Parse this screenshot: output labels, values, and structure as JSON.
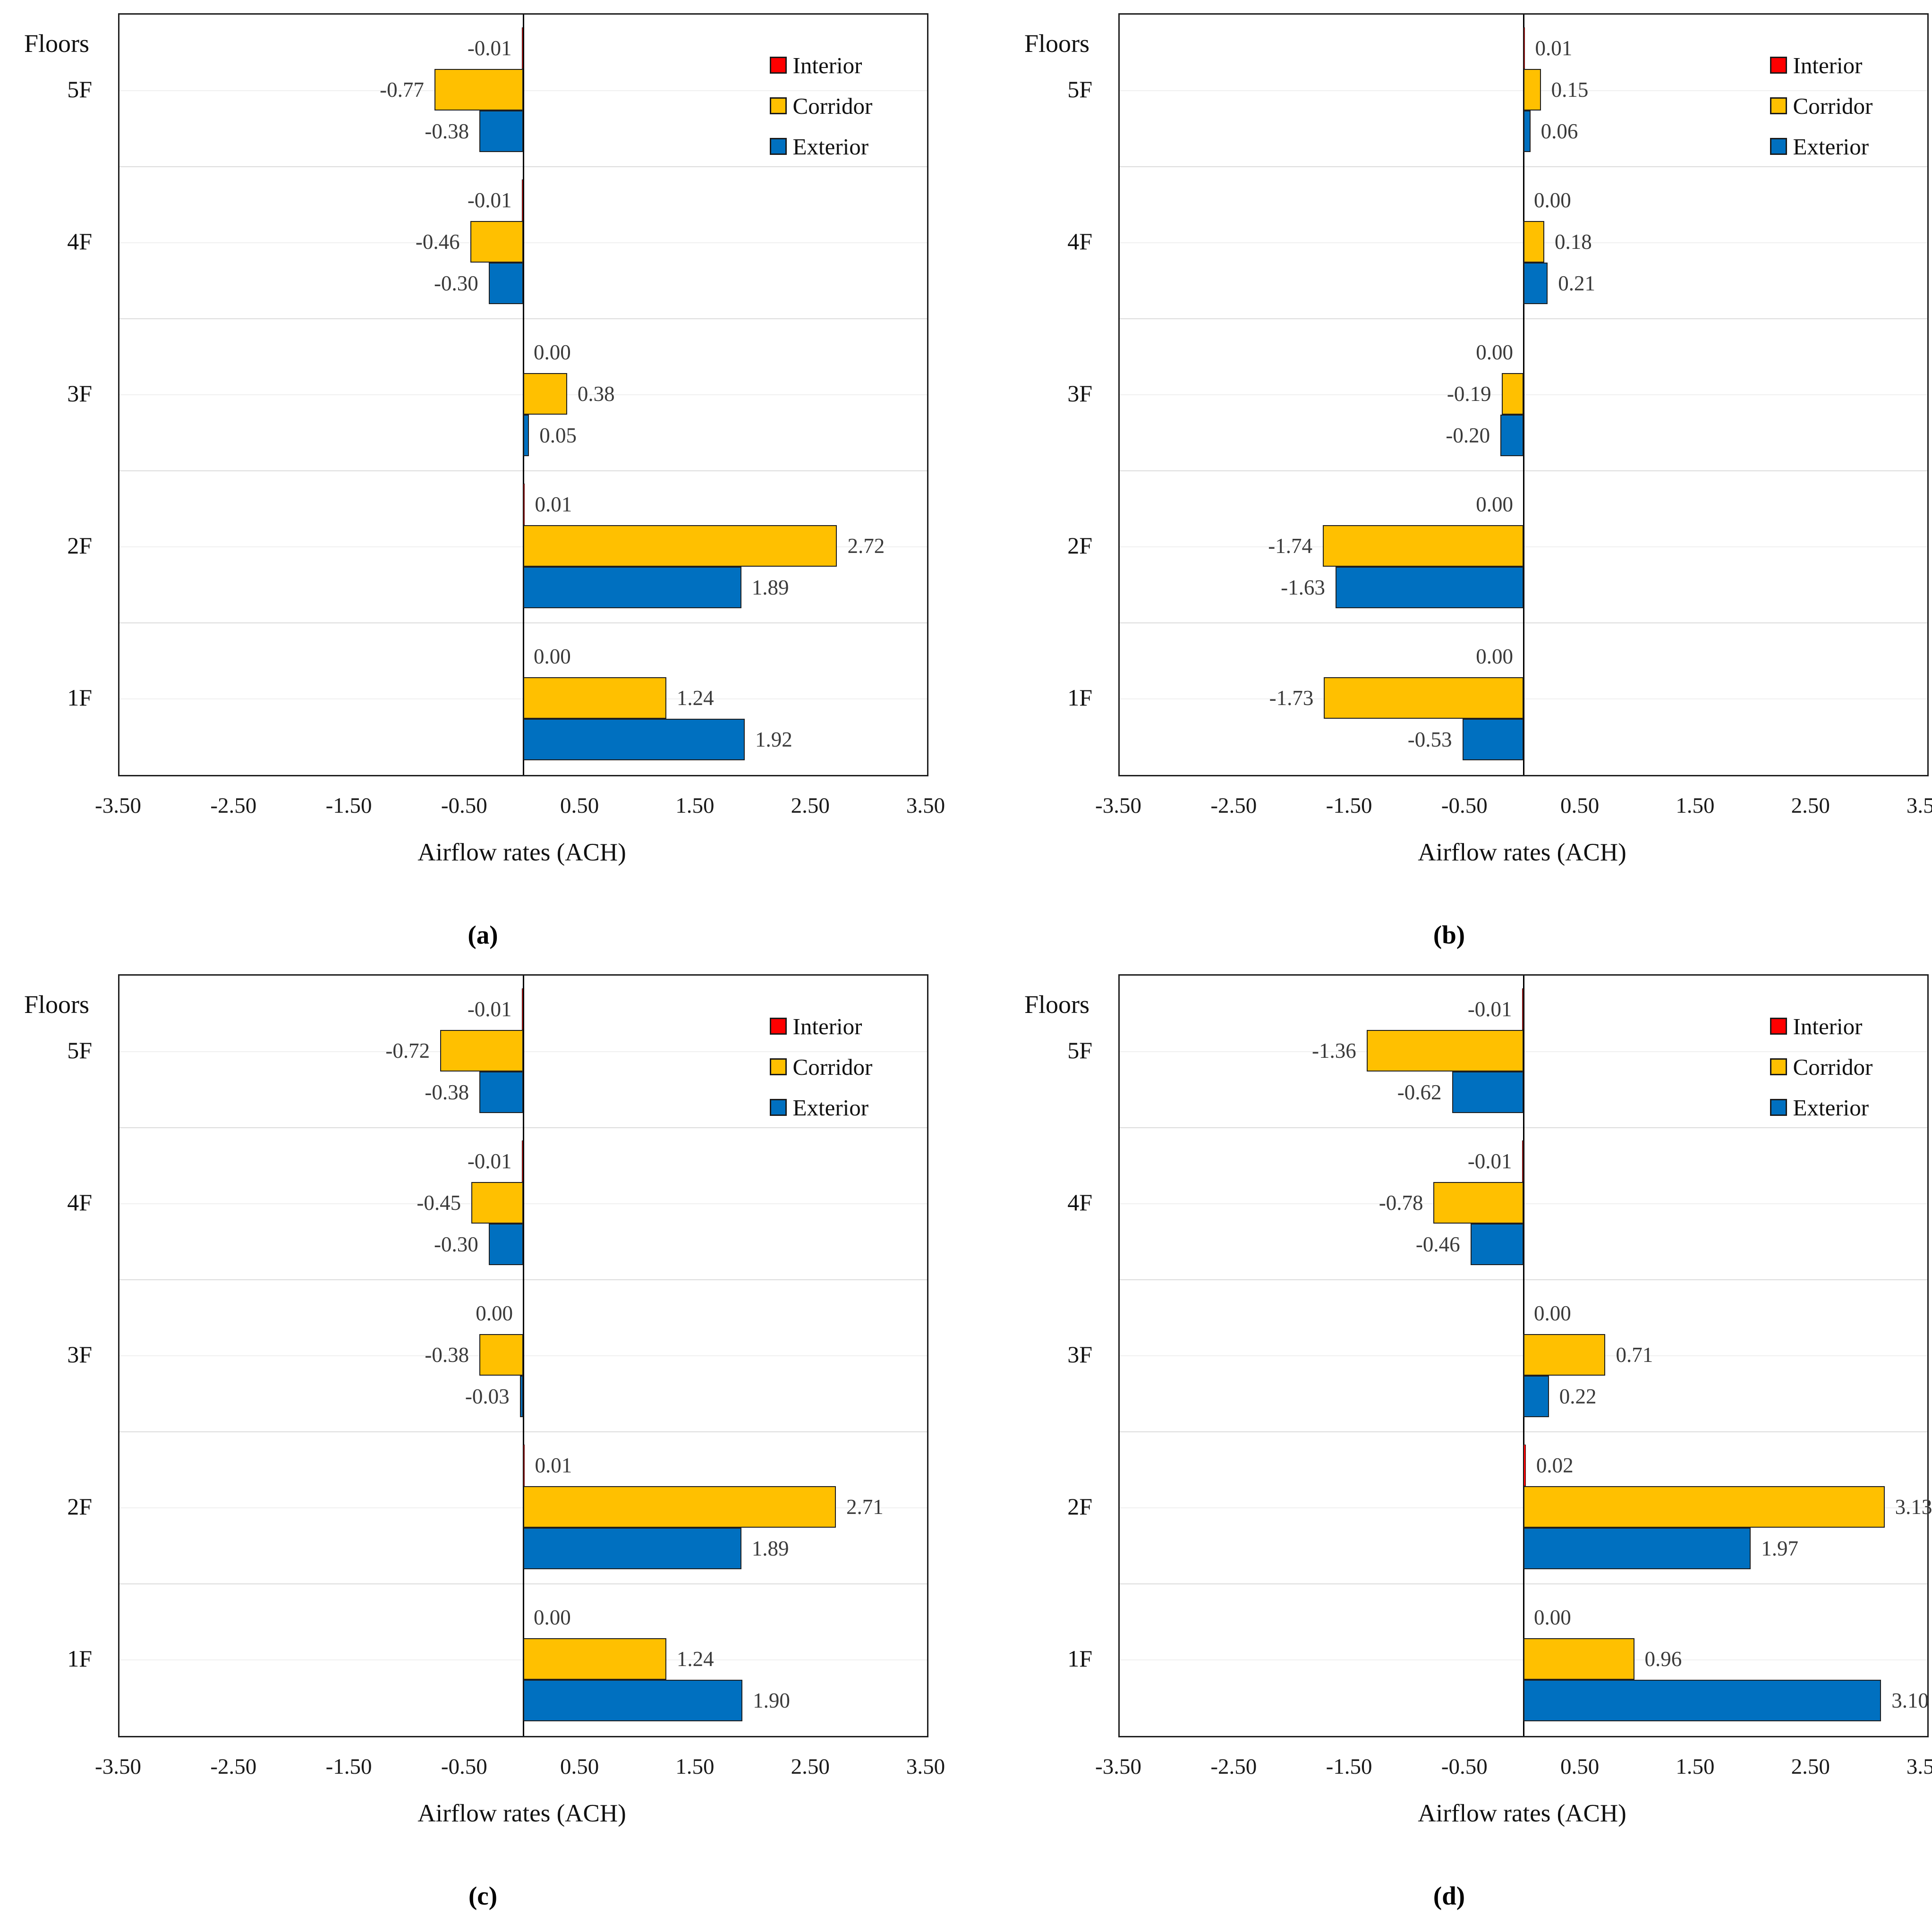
{
  "figure": {
    "y_axis_title": "Floors",
    "x_axis_title": "Airflow rates (ACH)",
    "x_ticks": [
      "-3.50",
      "-2.50",
      "-1.50",
      "-0.50",
      "0.50",
      "1.50",
      "2.50",
      "3.50"
    ],
    "x_range": [
      -3.5,
      3.5
    ],
    "legend": [
      {
        "label": "Interior",
        "color": "#fe0000"
      },
      {
        "label": "Corridor",
        "color": "#ffc000"
      },
      {
        "label": "Exterior",
        "color": "#0070c0"
      }
    ]
  },
  "chart_data": [
    {
      "type": "bar",
      "orientation": "horizontal",
      "caption": "(a)",
      "xlabel": "Airflow rates (ACH)",
      "ylabel": "Floors",
      "xlim": [
        -3.5,
        3.5
      ],
      "grid": "horizontal-light",
      "legend_position": "top-right-inside",
      "categories": [
        "5F",
        "4F",
        "3F",
        "2F",
        "1F"
      ],
      "series": [
        {
          "name": "Interior",
          "color": "#fe0000",
          "values": [
            -0.01,
            -0.01,
            0.0,
            0.01,
            0.0
          ],
          "labels": [
            "-0.01",
            "-0.01",
            "0.00",
            "0.01",
            "0.00"
          ],
          "label_sides": [
            "left",
            "left",
            "right",
            "right",
            "right"
          ]
        },
        {
          "name": "Corridor",
          "color": "#ffc000",
          "values": [
            -0.77,
            -0.46,
            0.38,
            2.72,
            1.24
          ],
          "labels": [
            "-0.77",
            "-0.46",
            "0.38",
            "2.72",
            "1.24"
          ]
        },
        {
          "name": "Exterior",
          "color": "#0070c0",
          "values": [
            -0.38,
            -0.3,
            0.05,
            1.89,
            1.92
          ],
          "labels": [
            "-0.38",
            "-0.30",
            "0.05",
            "1.89",
            "1.92"
          ]
        }
      ]
    },
    {
      "type": "bar",
      "orientation": "horizontal",
      "caption": "(b)",
      "xlabel": "Airflow rates (ACH)",
      "ylabel": "Floors",
      "xlim": [
        -3.5,
        3.5
      ],
      "grid": "horizontal-light",
      "legend_position": "top-right-inside",
      "categories": [
        "5F",
        "4F",
        "3F",
        "2F",
        "1F"
      ],
      "series": [
        {
          "name": "Interior",
          "color": "#fe0000",
          "values": [
            0.01,
            0.0,
            0.0,
            0.0,
            0.0
          ],
          "labels": [
            "0.01",
            "0.00",
            "0.00",
            "0.00",
            "0.00"
          ],
          "label_sides": [
            "right",
            "right",
            "left",
            "left",
            "left"
          ]
        },
        {
          "name": "Corridor",
          "color": "#ffc000",
          "values": [
            0.15,
            0.18,
            -0.19,
            -1.74,
            -1.73
          ],
          "labels": [
            "0.15",
            "0.18",
            "-0.19",
            "-1.74",
            "-1.73"
          ]
        },
        {
          "name": "Exterior",
          "color": "#0070c0",
          "values": [
            0.06,
            0.21,
            -0.2,
            -1.63,
            -0.53
          ],
          "labels": [
            "0.06",
            "0.21",
            "-0.20",
            "-1.63",
            "-0.53"
          ]
        }
      ]
    },
    {
      "type": "bar",
      "orientation": "horizontal",
      "caption": "(c)",
      "xlabel": "Airflow rates (ACH)",
      "ylabel": "Floors",
      "xlim": [
        -3.5,
        3.5
      ],
      "grid": "horizontal-light",
      "legend_position": "top-right-inside",
      "categories": [
        "5F",
        "4F",
        "3F",
        "2F",
        "1F"
      ],
      "series": [
        {
          "name": "Interior",
          "color": "#fe0000",
          "values": [
            -0.01,
            -0.01,
            0.0,
            0.01,
            0.0
          ],
          "labels": [
            "-0.01",
            "-0.01",
            "0.00",
            "0.01",
            "0.00"
          ],
          "label_sides": [
            "left",
            "left",
            "left",
            "right",
            "right"
          ]
        },
        {
          "name": "Corridor",
          "color": "#ffc000",
          "values": [
            -0.72,
            -0.45,
            -0.38,
            2.71,
            1.24
          ],
          "labels": [
            "-0.72",
            "-0.45",
            "-0.38",
            "2.71",
            "1.24"
          ]
        },
        {
          "name": "Exterior",
          "color": "#0070c0",
          "values": [
            -0.38,
            -0.3,
            -0.03,
            1.89,
            1.9
          ],
          "labels": [
            "-0.38",
            "-0.30",
            "-0.03",
            "1.89",
            "1.90"
          ]
        }
      ]
    },
    {
      "type": "bar",
      "orientation": "horizontal",
      "caption": "(d)",
      "xlabel": "Airflow rates (ACH)",
      "ylabel": "Floors",
      "xlim": [
        -3.5,
        3.5
      ],
      "grid": "horizontal-light",
      "legend_position": "top-right-inside",
      "categories": [
        "5F",
        "4F",
        "3F",
        "2F",
        "1F"
      ],
      "series": [
        {
          "name": "Interior",
          "color": "#fe0000",
          "values": [
            -0.01,
            -0.01,
            0.0,
            0.02,
            0.0
          ],
          "labels": [
            "-0.01",
            "-0.01",
            "0.00",
            "0.02",
            "0.00"
          ],
          "label_sides": [
            "left",
            "left",
            "right",
            "right",
            "right"
          ]
        },
        {
          "name": "Corridor",
          "color": "#ffc000",
          "values": [
            -1.36,
            -0.78,
            0.71,
            3.13,
            0.96
          ],
          "labels": [
            "-1.36",
            "-0.78",
            "0.71",
            "3.13",
            "0.96"
          ]
        },
        {
          "name": "Exterior",
          "color": "#0070c0",
          "values": [
            -0.62,
            -0.46,
            0.22,
            1.97,
            3.1
          ],
          "labels": [
            "-0.62",
            "-0.46",
            "0.22",
            "1.97",
            "3.10"
          ]
        }
      ]
    }
  ]
}
